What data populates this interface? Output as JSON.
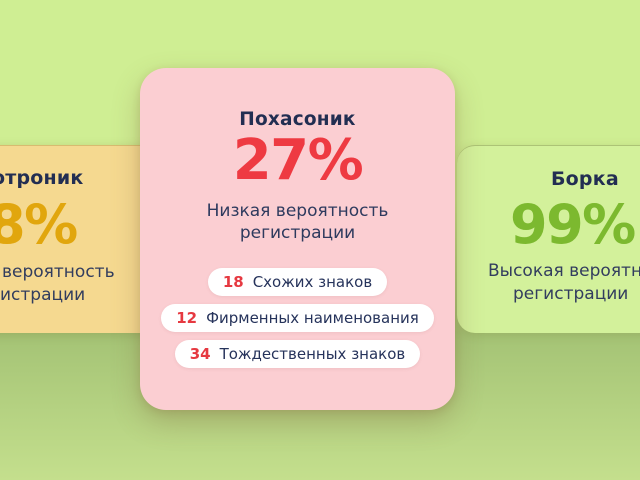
{
  "page": {
    "description": "Trademark registration probability comparison cards",
    "colors": {
      "background_top": "#cfee93",
      "background_bottom_dark": "#a4c375",
      "background_bottom_light": "#c4df8d",
      "card_left": "#f5d990",
      "card_center": "#fbced2",
      "card_right": "#d3f19b",
      "percent_left": "#e1a60d",
      "percent_center": "#ee3a42",
      "percent_right": "#7cb92f",
      "title_navy": "#222e52",
      "stat_number_red": "#e63941",
      "pill_background": "#ffffff"
    }
  },
  "cards": {
    "left": {
      "name_fragment": "отроник",
      "percent_fragment": "8%",
      "desc_line1_fragment": "вероятность",
      "desc_line2_fragment": "истрации"
    },
    "center": {
      "name": "Похасоник",
      "percent": "27%",
      "desc_line1": "Низкая вероятность",
      "desc_line2": "регистрации",
      "stats": [
        {
          "count": "18",
          "label": "Схожих знаков"
        },
        {
          "count": "12",
          "label": "Фирменных наименования"
        },
        {
          "count": "34",
          "label": "Тождественных знаков"
        }
      ]
    },
    "right": {
      "name": "Борка",
      "percent": "99%",
      "desc_line1_fragment": "Высокая вероятно",
      "desc_line2": "регистрации"
    }
  }
}
